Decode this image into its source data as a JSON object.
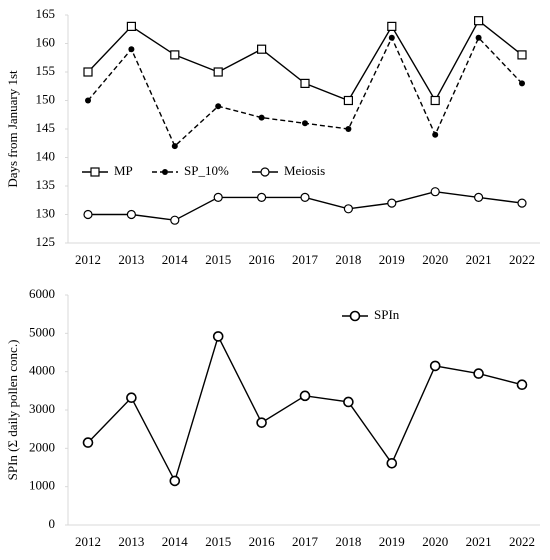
{
  "chart_data": [
    {
      "type": "line",
      "y_label": "Days from January 1st",
      "categories": [
        "2012",
        "2013",
        "2014",
        "2015",
        "2016",
        "2017",
        "2018",
        "2019",
        "2020",
        "2021",
        "2022"
      ],
      "ylim": [
        125,
        165
      ],
      "yticks": [
        125,
        130,
        135,
        140,
        145,
        150,
        155,
        160,
        165
      ],
      "series": [
        {
          "name": "MP",
          "color": "#000000",
          "marker": "square",
          "dash": false,
          "values": [
            155,
            163,
            158,
            155,
            159,
            153,
            150,
            163,
            150,
            164,
            158
          ]
        },
        {
          "name": "SP_10%",
          "color": "#000000",
          "marker": "dot",
          "dash": true,
          "values": [
            150,
            159,
            142,
            149,
            147,
            146,
            145,
            161,
            144,
            161,
            153
          ]
        },
        {
          "name": "Meiosis",
          "color": "#000000",
          "marker": "circle",
          "dash": false,
          "values": [
            130,
            130,
            129,
            133,
            133,
            133,
            131,
            132,
            134,
            133,
            132
          ]
        }
      ]
    },
    {
      "type": "line",
      "y_label": "SPIn (Σ daily pollen conc.)",
      "categories": [
        "2012",
        "2013",
        "2014",
        "2015",
        "2016",
        "2017",
        "2018",
        "2019",
        "2020",
        "2021",
        "2022"
      ],
      "ylim": [
        0,
        6000
      ],
      "yticks": [
        0,
        1000,
        2000,
        3000,
        4000,
        5000,
        6000
      ],
      "series": [
        {
          "name": "SPIn",
          "color": "#000000",
          "marker": "bigcircle",
          "dash": false,
          "values": [
            2150,
            3320,
            1150,
            4920,
            2670,
            3370,
            3210,
            1610,
            4150,
            3950,
            3660
          ]
        }
      ]
    }
  ]
}
